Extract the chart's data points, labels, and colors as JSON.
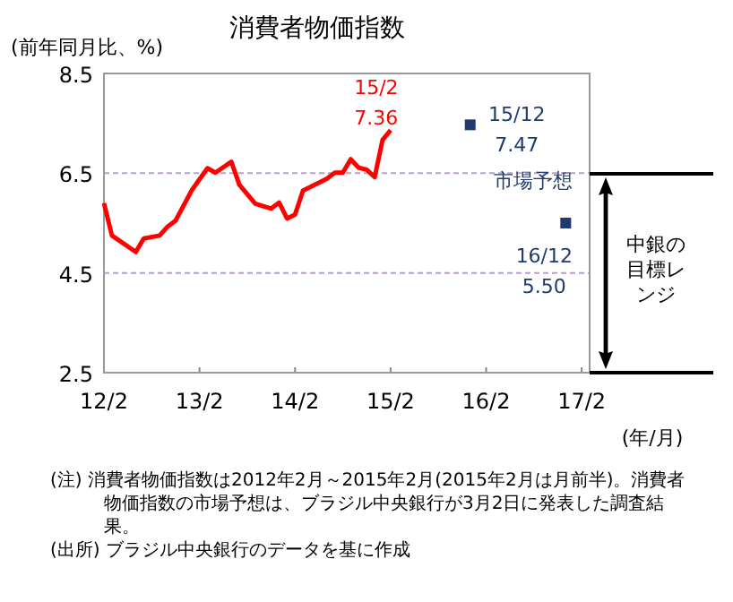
{
  "chart_data": {
    "type": "line",
    "title": "消費者物価指数",
    "ylabel": "(前年同月比、%)",
    "xlabel": "(年/月)",
    "xlim": [
      "2012-02",
      "2017-03"
    ],
    "ylim": [
      2.5,
      8.5
    ],
    "xticks": [
      {
        "value": "2012-02",
        "label": "12/2"
      },
      {
        "value": "2013-02",
        "label": "13/2"
      },
      {
        "value": "2014-02",
        "label": "14/2"
      },
      {
        "value": "2015-02",
        "label": "15/2"
      },
      {
        "value": "2016-02",
        "label": "16/2"
      },
      {
        "value": "2017-02",
        "label": "17/2"
      }
    ],
    "yticks": [
      2.5,
      4.5,
      6.5,
      8.5
    ],
    "grid": "y",
    "series": [
      {
        "color": "#ff0000",
        "x": [
          "2012-02",
          "2012-03",
          "2012-06",
          "2012-07",
          "2012-09",
          "2012-10",
          "2012-11",
          "2013-01",
          "2013-03",
          "2013-04",
          "2013-06",
          "2013-07",
          "2013-09",
          "2013-11",
          "2013-12",
          "2014-01",
          "2014-02",
          "2014-03",
          "2014-06",
          "2014-07",
          "2014-08",
          "2014-09",
          "2014-10",
          "2014-11",
          "2014-12",
          "2015-01",
          "2015-02"
        ],
        "values": [
          5.9,
          5.25,
          4.92,
          5.19,
          5.25,
          5.43,
          5.55,
          6.15,
          6.6,
          6.51,
          6.73,
          6.27,
          5.89,
          5.79,
          5.91,
          5.59,
          5.67,
          6.15,
          6.39,
          6.51,
          6.51,
          6.78,
          6.61,
          6.57,
          6.42,
          7.17,
          7.36
        ],
        "value_labels": [
          null,
          null,
          null,
          null,
          null,
          null,
          null,
          null,
          null,
          null,
          null,
          null,
          null,
          null,
          null,
          null,
          null,
          null,
          null,
          null,
          null,
          null,
          null,
          null,
          null,
          null,
          "15/2\n7.36"
        ]
      },
      {
        "type": "scatter",
        "name": "市場予想",
        "color": "#1f3a6e",
        "marker": "square",
        "x": [
          "2015-12",
          "2016-12"
        ],
        "values": [
          7.47,
          5.5
        ],
        "value_labels": [
          "15/12\n7.47",
          "16/12\n5.50"
        ]
      }
    ],
    "annotations": [
      "中銀の目標レンジ",
      "(注) 消費者物価指数は2012年2月～2015年2月(2015年2月は月前半)。消費者物価指数の市場予想は、ブラジル中央銀行が3月2日に発表した調査結果。",
      "(出所) ブラジル中央銀行のデータを基に作成"
    ]
  }
}
